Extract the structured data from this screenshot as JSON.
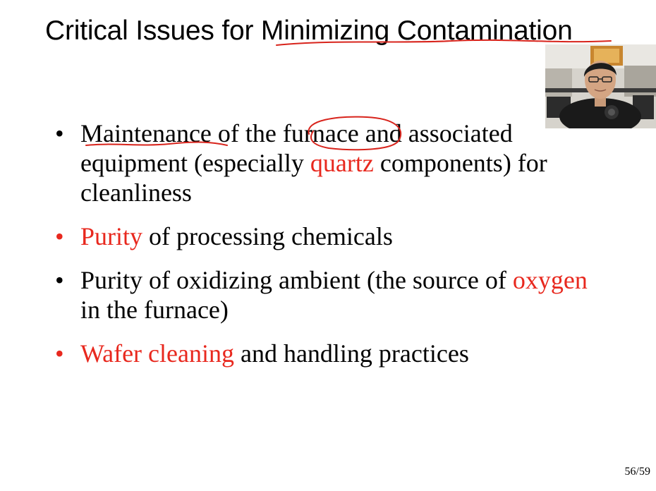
{
  "slide": {
    "title": "Critical Issues for Minimizing Contamination",
    "bullets": [
      {
        "bullet_color": "black",
        "segments": [
          {
            "text": "Maintenance",
            "highlight": false
          },
          {
            "text": " of the ",
            "highlight": false
          },
          {
            "text": "furnace",
            "highlight": false
          },
          {
            "text": " and associated equipment (especially ",
            "highlight": false
          },
          {
            "text": "quartz",
            "highlight": true
          },
          {
            "text": " components) for cleanliness",
            "highlight": false
          }
        ]
      },
      {
        "bullet_color": "red",
        "segments": [
          {
            "text": "Purity",
            "highlight": true
          },
          {
            "text": " of processing chemicals",
            "highlight": false
          }
        ]
      },
      {
        "bullet_color": "black",
        "segments": [
          {
            "text": "Purity of oxidizing ambient (the source of ",
            "highlight": false
          },
          {
            "text": "oxygen",
            "highlight": true
          },
          {
            "text": " in the furnace)",
            "highlight": false
          }
        ]
      },
      {
        "bullet_color": "red",
        "segments": [
          {
            "text": "Wafer cleaning",
            "highlight": true
          },
          {
            "text": " and handling practices",
            "highlight": false
          }
        ]
      }
    ],
    "bullet_symbol": "•",
    "page_number": "56/59"
  },
  "colors": {
    "highlight": "#e8281e",
    "annotation_ink": "#d8241c",
    "text": "#000000",
    "background": "#ffffff"
  },
  "webcam": {
    "icon": "presenter-webcam-icon"
  }
}
